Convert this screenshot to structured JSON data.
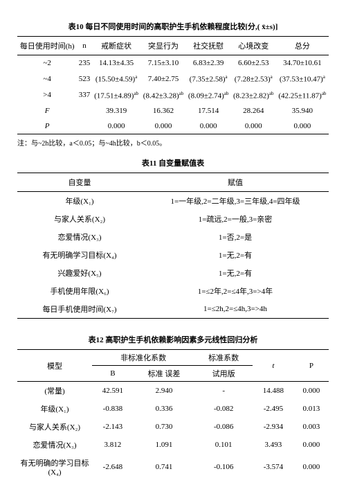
{
  "table10": {
    "title": "表10 每日不同使用时间的高职护生手机依赖程度比较[分,( x̄±s)]",
    "headers": [
      "每日使用时间(h)",
      "n",
      "戒断症状",
      "突显行为",
      "社交抚慰",
      "心境改变",
      "总分"
    ],
    "rows": [
      [
        "~2",
        "235",
        "14.13±4.35",
        "7.15±3.10",
        "6.83±2.39",
        "6.60±2.53",
        "34.70±10.61"
      ],
      [
        "~4",
        "523",
        "(15.50±4.59)ᵃ",
        "7.40±2.75",
        "(7.35±2.58)ᵃ",
        "(7.28±2.53)ᵃ",
        "(37.53±10.47)ᵃ"
      ],
      [
        ">4",
        "337",
        "(17.51±4.89)ᵃᵇ",
        "(8.42±3.28)ᵃᵇ",
        "(8.09±2.74)ᵃᵇ",
        "(8.23±2.82)ᵃᵇ",
        "(42.25±11.87)ᵃᵇ"
      ],
      [
        "F",
        "",
        "39.319",
        "16.362",
        "17.514",
        "28.264",
        "35.940"
      ],
      [
        "P",
        "",
        "0.000",
        "0.000",
        "0.000",
        "0.000",
        "0.000"
      ]
    ],
    "note": "注：与~2h比较，a＜0.05；与~4h比较，b＜0.05。"
  },
  "table11": {
    "title": "表11 自变量赋值表",
    "headers": [
      "自变量",
      "赋值"
    ],
    "rows": [
      [
        "年级(X₁)",
        "1=一年级,2=二年级,3=三年级,4=四年级"
      ],
      [
        "与家人关系(X₂)",
        "1=疏远,2=一般,3=亲密"
      ],
      [
        "恋爱情况(X₃)",
        "1=否,2=是"
      ],
      [
        "有无明确学习目标(X₄)",
        "1=无,2=有"
      ],
      [
        "兴趣爱好(X₅)",
        "1=无,2=有"
      ],
      [
        "手机使用年限(X₆)",
        "1=≤2年,2=≤4年,3=>4年"
      ],
      [
        "每日手机使用时间(X₇)",
        "1=≤2h,2=≤4h,3=>4h"
      ]
    ]
  },
  "table12": {
    "title": "表12 高职护生手机依赖影响因素多元线性回归分析",
    "topHeaders": [
      "模型",
      "非标准化系数",
      "标准系数",
      "t",
      "P"
    ],
    "subHeaders": [
      "",
      "B",
      "标准 误差",
      "试用版",
      "",
      ""
    ],
    "rows": [
      [
        "(常量)",
        "42.591",
        "2.940",
        "-",
        "14.488",
        "0.000"
      ],
      [
        "年级(X₁)",
        "-0.838",
        "0.336",
        "-0.082",
        "-2.495",
        "0.013"
      ],
      [
        "与家人关系(X₂)",
        "-2.143",
        "0.730",
        "-0.086",
        "-2.934",
        "0.003"
      ],
      [
        "恋爱情况(X₃)",
        "3.812",
        "1.091",
        "0.101",
        "3.493",
        "0.000"
      ],
      [
        "有无明确的学习目标(X₄)",
        "-2.648",
        "0.741",
        "-0.106",
        "-3.574",
        "0.000"
      ]
    ]
  }
}
